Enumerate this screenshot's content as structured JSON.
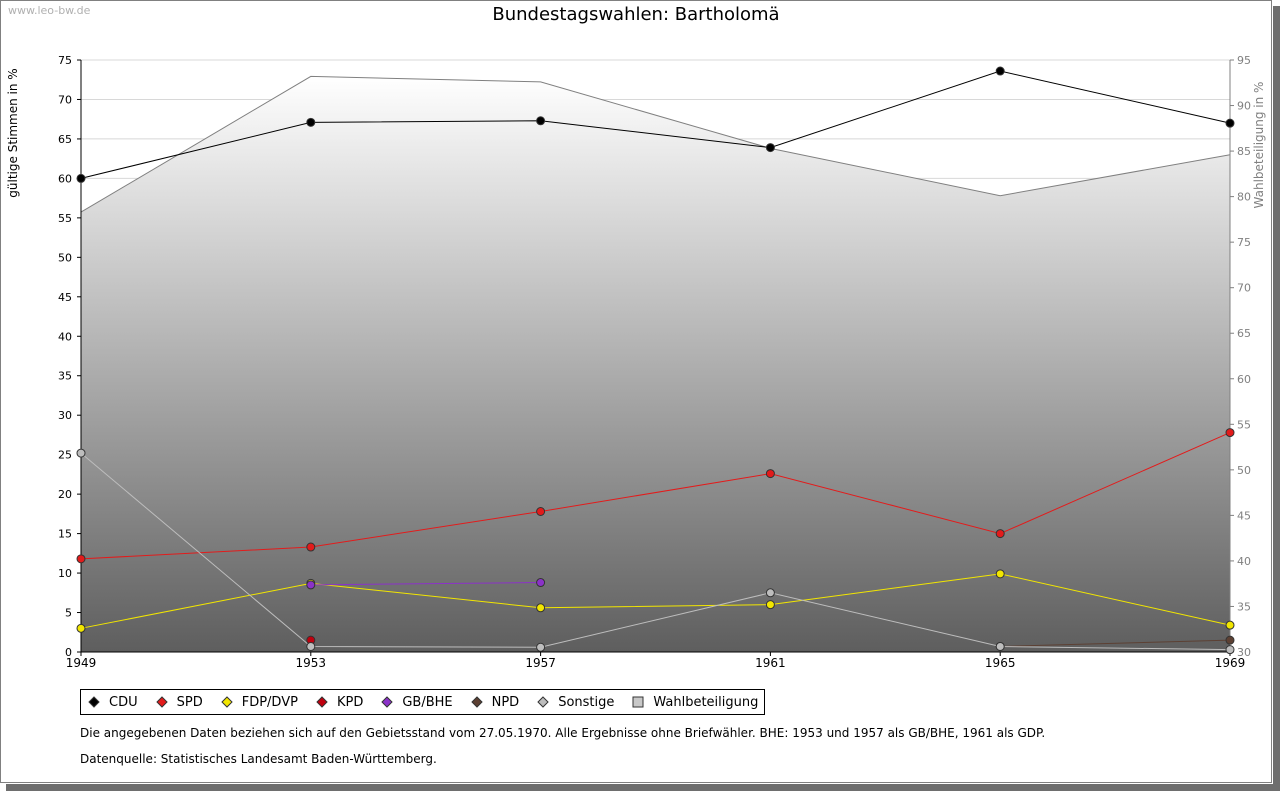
{
  "watermark": "www.leo-bw.de",
  "chart_data": {
    "type": "line",
    "title": "Bundestagswahlen: Bartholomä",
    "ylabel": "gültige Stimmen in %",
    "y2label": "Wahlbeteiligung in %",
    "x": [
      "1949",
      "1953",
      "1957",
      "1961",
      "1965",
      "1969"
    ],
    "ylim": [
      0,
      75
    ],
    "y2lim": [
      30,
      95
    ],
    "yticks": [
      0,
      5,
      10,
      15,
      20,
      25,
      30,
      35,
      40,
      45,
      50,
      55,
      60,
      65,
      70,
      75
    ],
    "y2ticks": [
      30,
      35,
      40,
      45,
      50,
      55,
      60,
      65,
      70,
      75,
      80,
      85,
      90,
      95
    ],
    "grid": true,
    "series": [
      {
        "name": "CDU",
        "color": "#000000",
        "values": [
          60.0,
          67.1,
          67.3,
          63.9,
          73.6,
          67.0
        ]
      },
      {
        "name": "SPD",
        "color": "#e31b1b",
        "values": [
          11.8,
          13.3,
          17.8,
          22.6,
          15.0,
          27.8
        ]
      },
      {
        "name": "FDP/DVP",
        "color": "#f2e600",
        "values": [
          3.0,
          8.7,
          5.6,
          6.0,
          9.9,
          3.4
        ]
      },
      {
        "name": "KPD",
        "color": "#c0000e",
        "values": [
          null,
          1.5,
          null,
          null,
          null,
          null
        ]
      },
      {
        "name": "GB/BHE",
        "color": "#8b32c8",
        "values": [
          null,
          8.5,
          8.8,
          null,
          null,
          null
        ]
      },
      {
        "name": "NPD",
        "color": "#5c4033",
        "values": [
          null,
          null,
          null,
          null,
          0.7,
          1.5
        ]
      },
      {
        "name": "Sonstige",
        "color": "#bdbdbd",
        "values": [
          25.2,
          0.7,
          0.6,
          7.5,
          0.7,
          0.3
        ]
      }
    ],
    "turnout": {
      "name": "Wahlbeteiligung",
      "color": "#909090",
      "values": [
        78.3,
        93.2,
        92.6,
        85.3,
        80.1,
        84.6
      ]
    }
  },
  "notes": {
    "line1": "Die angegebenen Daten beziehen sich auf den Gebietsstand vom 27.05.1970. Alle Ergebnisse ohne Briefwähler. BHE: 1953 und 1957 als GB/BHE, 1961 als GDP.",
    "line2": "Datenquelle: Statistisches Landesamt Baden-Württemberg."
  }
}
